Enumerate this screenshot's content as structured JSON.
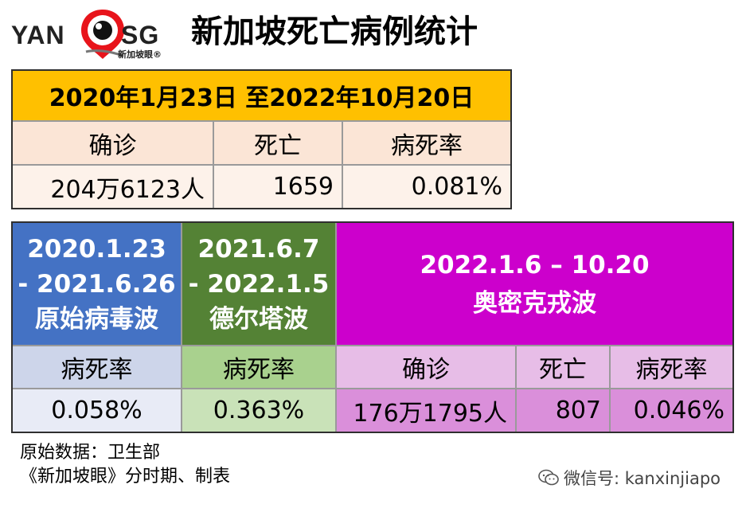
{
  "logo": {
    "left_text": "YAN",
    "right_text": "SG",
    "subtext": "新加坡眼®"
  },
  "title": "新加坡死亡病例统计",
  "chart_data": [
    {
      "type": "table",
      "title": "2020年1月23日 至2022年10月20日",
      "columns": [
        "确诊",
        "死亡",
        "病死率"
      ],
      "rows": [
        [
          "204万6123人",
          "1659",
          "0.081%"
        ]
      ]
    },
    {
      "type": "table",
      "periods": [
        {
          "date_line1": "2020.1.23",
          "date_line2": "- 2021.6.26",
          "name": "原始病毒波",
          "color": "#4472c4",
          "columns": [
            "病死率"
          ],
          "values": [
            "0.058%"
          ],
          "cfr_percent": 0.058
        },
        {
          "date_line1": "2021.6.7",
          "date_line2": "- 2022.1.5",
          "name": "德尔塔波",
          "color": "#548235",
          "columns": [
            "病死率"
          ],
          "values": [
            "0.363%"
          ],
          "cfr_percent": 0.363
        },
        {
          "date_line1": "2022.1.6 – 10.20",
          "name": "奥密克戎波",
          "color": "#cc00cc",
          "columns": [
            "确诊",
            "死亡",
            "病死率"
          ],
          "values": [
            "176万1795人",
            "807",
            "0.046%"
          ],
          "cases_total": 1761795,
          "deaths": 807,
          "cfr_percent": 0.046
        }
      ]
    }
  ],
  "notes": {
    "source": "原始数据：卫生部",
    "credit": "《新加坡眼》分时期、制表"
  },
  "watermark": {
    "text": "微信号: kanxinjiapo"
  }
}
